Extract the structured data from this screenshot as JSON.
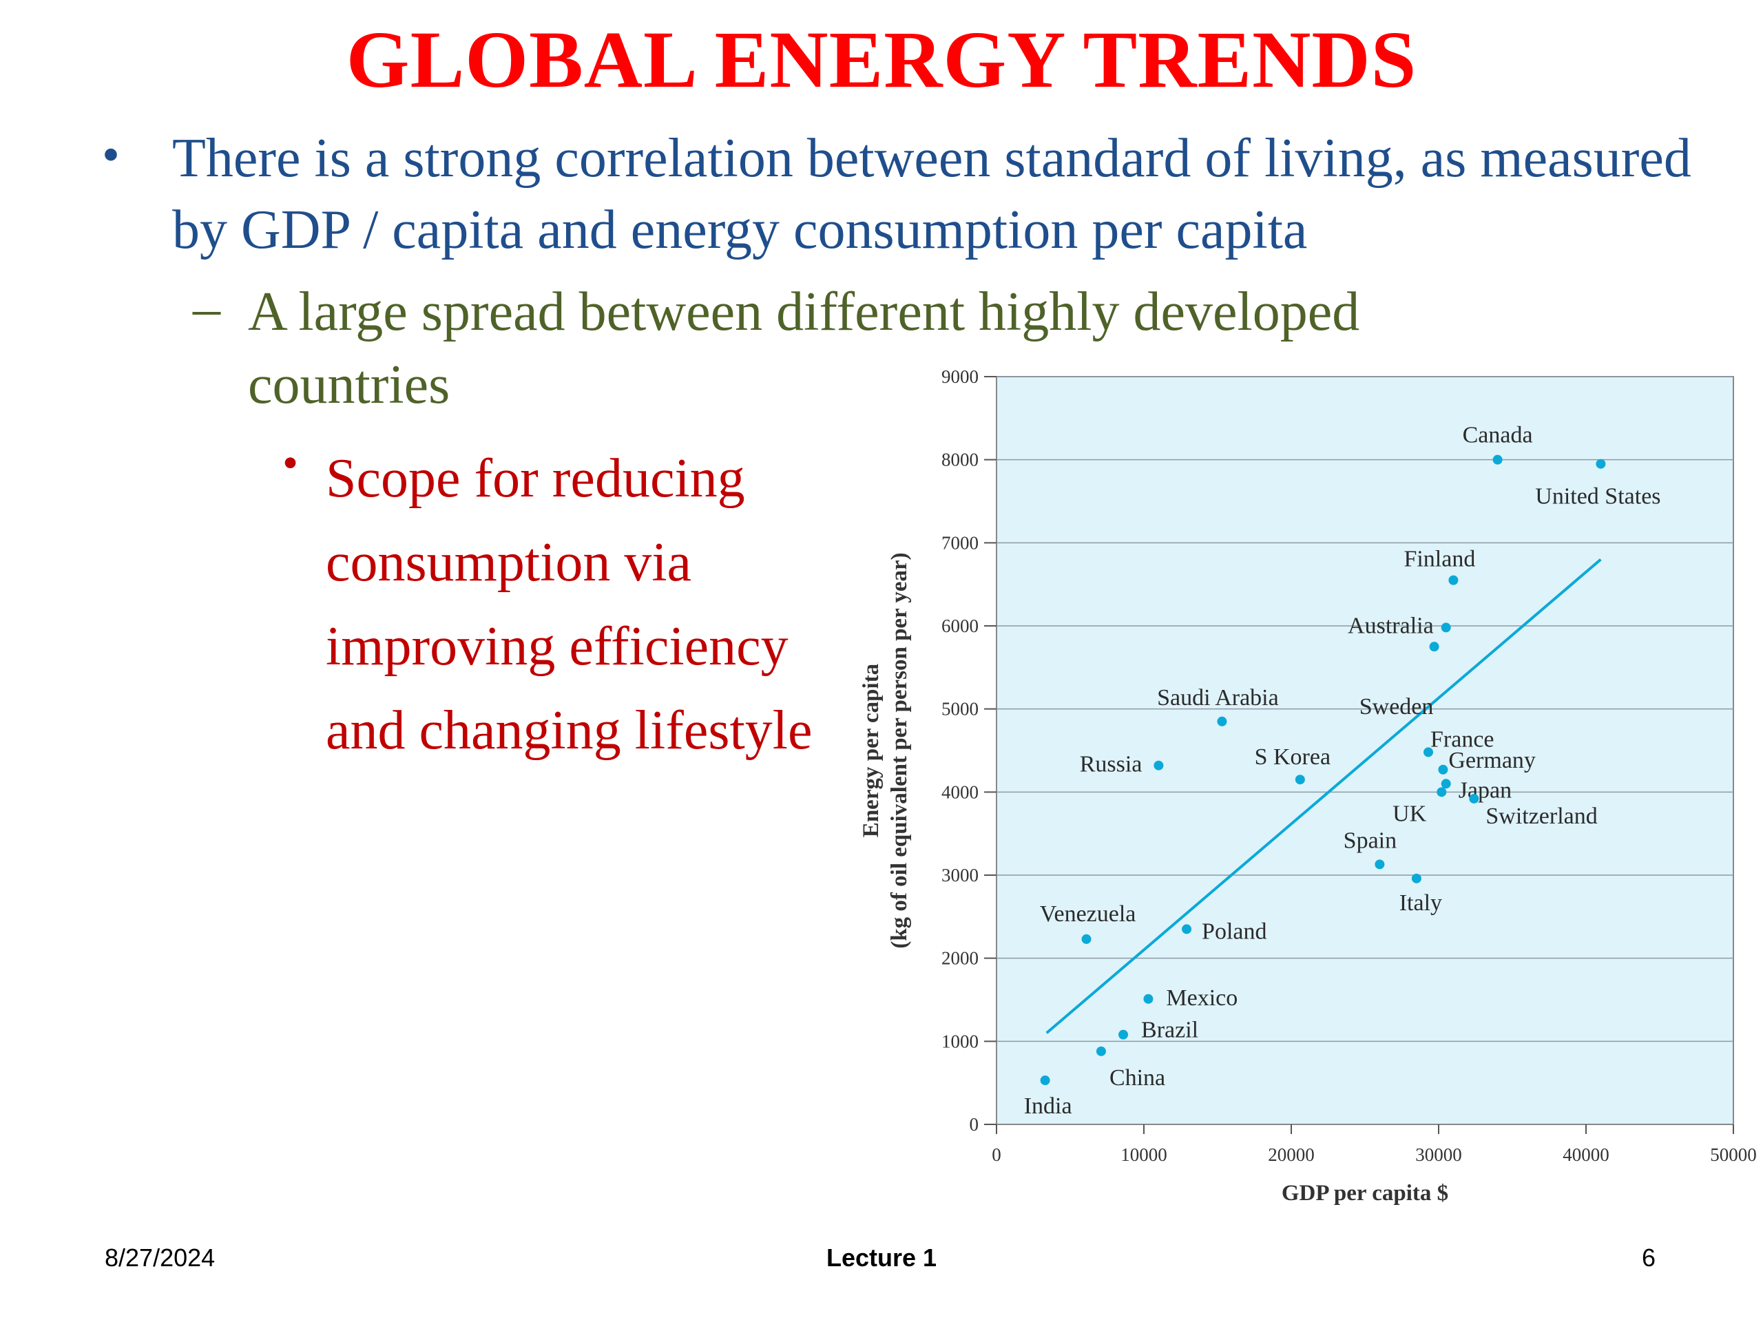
{
  "slide": {
    "title": "GLOBAL ENERGY TRENDS",
    "bullet1": {
      "marker": "•",
      "text": "There is a strong correlation between standard of living, as measured by GDP / capita and energy consumption per capita"
    },
    "bullet2": {
      "marker": "–",
      "text": "A large spread between different highly developed countries"
    },
    "bullet3": {
      "marker": "•",
      "text": "Scope for reducing consumption via improving efficiency and changing lifestyle"
    }
  },
  "footer": {
    "date": "8/27/2024",
    "center": "Lecture 1",
    "page": "6"
  },
  "colors": {
    "title": "#ff0000",
    "bullet1": "#1f4e8c",
    "bullet2": "#4f6228",
    "bullet3": "#c00000",
    "plot_background": "#dff3fa",
    "points": "#0ba9d8",
    "trend_line": "#0ba9d8"
  },
  "chart_data": {
    "type": "scatter",
    "xlabel": "GDP per capita $",
    "ylabel_line1": "Energy per capita",
    "ylabel_line2": "(kg of oil equivalent per person per year)",
    "xlim": [
      0,
      50000
    ],
    "ylim": [
      0,
      9000
    ],
    "x_ticks": [
      0,
      10000,
      20000,
      30000,
      40000,
      50000
    ],
    "y_ticks": [
      0,
      1000,
      2000,
      3000,
      4000,
      5000,
      6000,
      7000,
      8000,
      9000
    ],
    "grid": "horizontal",
    "points": [
      {
        "label": "Canada",
        "x": 34000,
        "y": 8000
      },
      {
        "label": "United States",
        "x": 41000,
        "y": 7950
      },
      {
        "label": "Finland",
        "x": 31000,
        "y": 6550
      },
      {
        "label": "Australia",
        "x": 30500,
        "y": 5980
      },
      {
        "label": "Sweden",
        "x": 29700,
        "y": 5750
      },
      {
        "label": "Saudi Arabia",
        "x": 15300,
        "y": 4850
      },
      {
        "label": "France",
        "x": 29300,
        "y": 4480
      },
      {
        "label": "Germany",
        "x": 30300,
        "y": 4270
      },
      {
        "label": "Japan",
        "x": 30500,
        "y": 4100
      },
      {
        "label": "UK",
        "x": 30200,
        "y": 4000
      },
      {
        "label": "Switzerland",
        "x": 32400,
        "y": 3920
      },
      {
        "label": "Russia",
        "x": 11000,
        "y": 4320
      },
      {
        "label": "S Korea",
        "x": 20600,
        "y": 4150
      },
      {
        "label": "Spain",
        "x": 26000,
        "y": 3130
      },
      {
        "label": "Italy",
        "x": 28500,
        "y": 2960
      },
      {
        "label": "Venezuela",
        "x": 6100,
        "y": 2230
      },
      {
        "label": "Poland",
        "x": 12900,
        "y": 2350
      },
      {
        "label": "Mexico",
        "x": 10300,
        "y": 1510
      },
      {
        "label": "Brazil",
        "x": 8600,
        "y": 1080
      },
      {
        "label": "China",
        "x": 7100,
        "y": 880
      },
      {
        "label": "India",
        "x": 3300,
        "y": 530
      }
    ],
    "trend_line": {
      "x": [
        3400,
        41000
      ],
      "y": [
        1100,
        6800
      ]
    }
  }
}
